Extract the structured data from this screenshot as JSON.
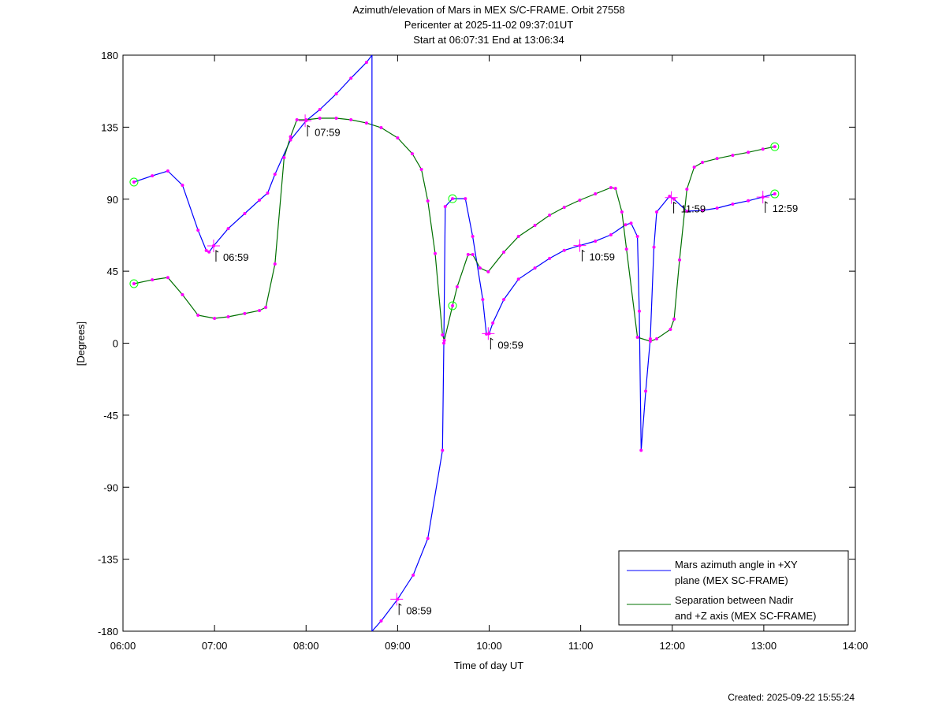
{
  "chart_data": {
    "type": "line",
    "title": [
      "Azimuth/elevation of Mars in MEX S/C-FRAME.  Orbit 27558",
      "Pericenter at 2025-11-02 09:37:01UT",
      "Start at 06:07:31 End at 13:06:34"
    ],
    "xlabel": "Time of day UT",
    "ylabel": "[Degrees]",
    "xlim": [
      6,
      14
    ],
    "ylim": [
      -180,
      180
    ],
    "xticks": [
      6,
      7,
      8,
      9,
      10,
      11,
      12,
      13,
      14
    ],
    "xtick_labels": [
      "06:00",
      "07:00",
      "08:00",
      "09:00",
      "10:00",
      "11:00",
      "12:00",
      "13:00",
      "14:00"
    ],
    "yticks": [
      180,
      135,
      90,
      45,
      0,
      -45,
      -90,
      -135,
      -180
    ],
    "ytick_labels": [
      "180",
      "135",
      "90",
      "45",
      "0",
      "-45",
      "-90",
      "-135",
      "-180"
    ],
    "grid": false,
    "legend_position": "bottom-right",
    "colors": {
      "azimuth": "#0000ff",
      "separation": "#007000",
      "marker": "#ff00ff",
      "circle": "#00ff00"
    },
    "series": [
      {
        "name": "Mars azimuth angle in +XY plane (MEX SC-FRAME)",
        "legend": [
          "Mars azimuth angle in +XY",
          "plane (MEX SC-FRAME)"
        ],
        "color": "#0000ff",
        "points": [
          [
            6.12,
            100.7
          ],
          [
            6.32,
            104.6
          ],
          [
            6.49,
            107.6
          ],
          [
            6.65,
            98.7
          ],
          [
            6.82,
            70.6
          ],
          [
            6.91,
            57.9
          ],
          [
            6.94,
            57
          ],
          [
            6.99,
            60.8
          ],
          [
            7.15,
            71.6
          ],
          [
            7.33,
            81
          ],
          [
            7.49,
            89.4
          ],
          [
            7.58,
            93.8
          ],
          [
            7.66,
            105.6
          ],
          [
            7.83,
            127
          ],
          [
            8.0,
            139
          ],
          [
            8.15,
            146
          ],
          [
            8.33,
            155.8
          ],
          [
            8.49,
            165.6
          ],
          [
            8.66,
            175.5
          ],
          [
            8.72,
            180
          ],
          null,
          [
            8.72,
            -180
          ],
          [
            8.82,
            -173.6
          ],
          [
            9.0,
            -160
          ],
          [
            9.17,
            -145
          ],
          [
            9.33,
            -122
          ],
          [
            9.49,
            -67
          ],
          [
            9.505,
            0
          ],
          [
            9.52,
            85.4
          ],
          [
            9.6,
            90.3
          ],
          [
            9.74,
            90.3
          ],
          [
            9.82,
            66.7
          ],
          [
            9.93,
            27.3
          ],
          [
            9.97,
            5.7
          ],
          [
            10.0,
            6
          ],
          [
            10.04,
            12.6
          ],
          [
            10.16,
            27.3
          ],
          [
            10.32,
            40
          ],
          [
            10.5,
            47
          ],
          [
            10.66,
            53
          ],
          [
            10.82,
            58
          ],
          [
            10.99,
            61
          ],
          [
            11.16,
            63.8
          ],
          [
            11.33,
            67.7
          ],
          [
            11.49,
            74
          ],
          [
            11.55,
            75
          ],
          [
            11.62,
            66.7
          ],
          [
            11.64,
            20
          ],
          [
            11.66,
            -67
          ],
          [
            11.71,
            -30
          ],
          [
            11.76,
            2.7
          ],
          [
            11.8,
            60
          ],
          [
            11.83,
            82
          ],
          [
            11.97,
            91.8
          ],
          [
            12.02,
            90
          ],
          [
            12.16,
            82.5
          ],
          [
            12.33,
            83
          ],
          [
            12.49,
            84.4
          ],
          [
            12.66,
            86.9
          ],
          [
            12.83,
            89
          ],
          [
            12.99,
            91.3
          ],
          [
            13.12,
            93.3
          ]
        ]
      },
      {
        "name": "Separation between Nadir and +Z axis (MEX SC-FRAME)",
        "legend": [
          "Separation between Nadir",
          "and +Z axis (MEX SC-FRAME)"
        ],
        "color": "#007000",
        "points": [
          [
            6.12,
            37.2
          ],
          [
            6.32,
            39.6
          ],
          [
            6.49,
            41
          ],
          [
            6.65,
            30.3
          ],
          [
            6.82,
            17.5
          ],
          [
            7.0,
            15.5
          ],
          [
            7.15,
            16.5
          ],
          [
            7.33,
            18.5
          ],
          [
            7.49,
            20.4
          ],
          [
            7.56,
            22.4
          ],
          [
            7.66,
            49.5
          ],
          [
            7.76,
            116
          ],
          [
            7.83,
            129
          ],
          [
            7.9,
            139.6
          ],
          [
            8.0,
            139.6
          ],
          [
            8.15,
            140.6
          ],
          [
            8.33,
            140.6
          ],
          [
            8.49,
            139.6
          ],
          [
            8.66,
            137.6
          ],
          [
            8.82,
            134.7
          ],
          [
            9.0,
            128.3
          ],
          [
            9.16,
            118.4
          ],
          [
            9.26,
            108.6
          ],
          [
            9.33,
            88.9
          ],
          [
            9.41,
            56
          ],
          [
            9.49,
            5.2
          ],
          [
            9.51,
            1.7
          ],
          [
            9.6,
            23.4
          ],
          [
            9.65,
            35.2
          ],
          [
            9.77,
            55.4
          ],
          [
            9.82,
            55.4
          ],
          [
            9.9,
            47
          ],
          [
            9.99,
            44.6
          ],
          [
            10.16,
            56.9
          ],
          [
            10.32,
            66.7
          ],
          [
            10.5,
            73.6
          ],
          [
            10.66,
            80
          ],
          [
            10.82,
            84.9
          ],
          [
            10.99,
            89.4
          ],
          [
            11.16,
            93.3
          ],
          [
            11.33,
            97.2
          ],
          [
            11.38,
            96.7
          ],
          [
            11.45,
            82
          ],
          [
            11.5,
            58.8
          ],
          [
            11.62,
            3.7
          ],
          [
            11.76,
            1.2
          ],
          [
            11.83,
            2.7
          ],
          [
            11.98,
            8.6
          ],
          [
            12.02,
            15
          ],
          [
            12.08,
            52
          ],
          [
            12.16,
            96.2
          ],
          [
            12.24,
            110
          ],
          [
            12.33,
            113
          ],
          [
            12.49,
            115.4
          ],
          [
            12.66,
            117.4
          ],
          [
            12.83,
            119.3
          ],
          [
            12.99,
            121.3
          ],
          [
            13.12,
            122.8
          ]
        ]
      }
    ],
    "hour_marks": [
      {
        "label": "06:59",
        "x": 6.99,
        "y": 60.8
      },
      {
        "label": "07:59",
        "x": 7.99,
        "y": 139
      },
      {
        "label": "08:59",
        "x": 8.99,
        "y": -160
      },
      {
        "label": "09:59",
        "x": 9.99,
        "y": 6
      },
      {
        "label": "10:59",
        "x": 10.99,
        "y": 61
      },
      {
        "label": "11:59",
        "x": 11.99,
        "y": 91
      },
      {
        "label": "12:59",
        "x": 12.99,
        "y": 91.3
      }
    ],
    "circles": [
      [
        6.12,
        100.7
      ],
      [
        6.12,
        37.2
      ],
      [
        9.6,
        90.3
      ],
      [
        9.6,
        23.4
      ],
      [
        13.12,
        93.3
      ],
      [
        13.12,
        122.8
      ]
    ]
  },
  "footer": "Created: 2025-09-22 15:55:24"
}
